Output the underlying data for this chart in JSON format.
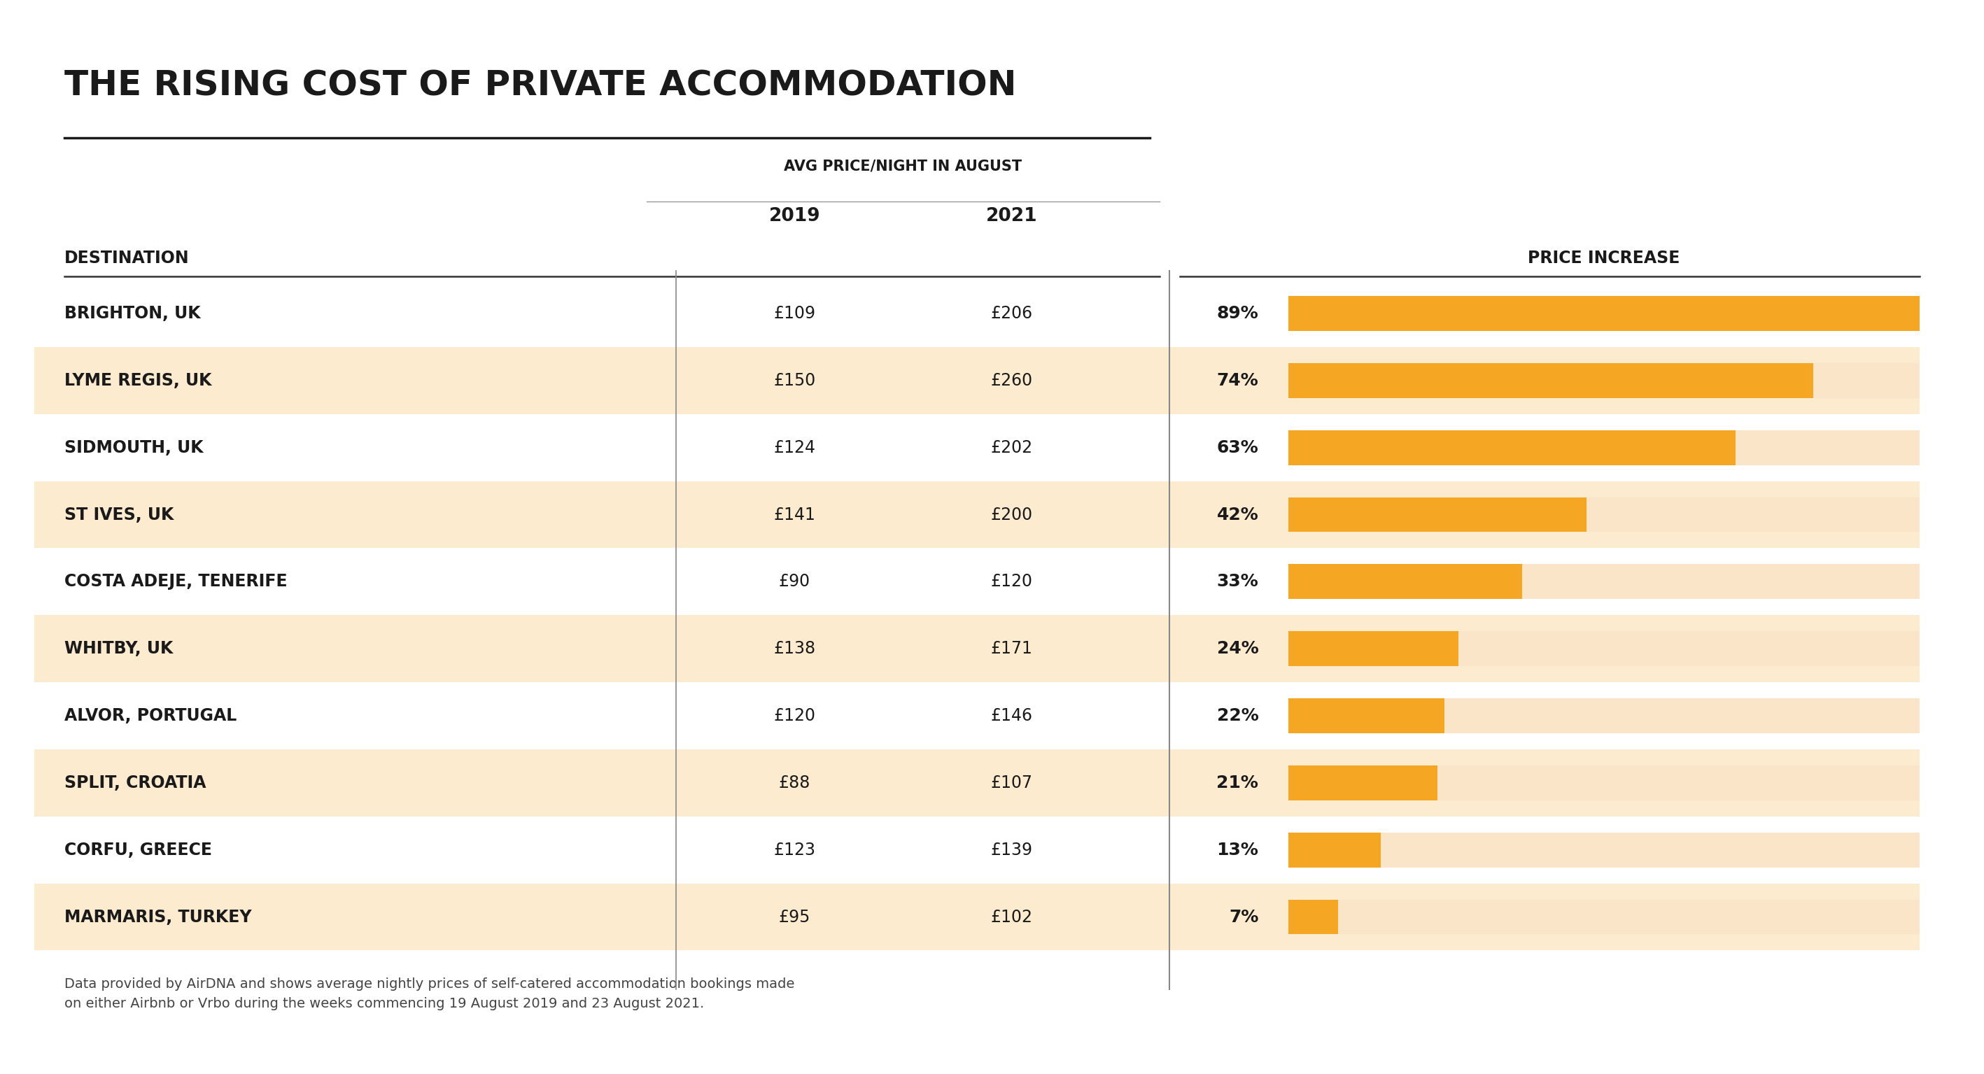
{
  "title": "THE RISING COST OF PRIVATE ACCOMMODATION",
  "destinations": [
    "BRIGHTON, UK",
    "LYME REGIS, UK",
    "SIDMOUTH, UK",
    "ST IVES, UK",
    "COSTA ADEJE, TENERIFE",
    "WHITBY, UK",
    "ALVOR, PORTUGAL",
    "SPLIT, CROATIA",
    "CORFU, GREECE",
    "MARMARIS, TURKEY"
  ],
  "prices_2019": [
    "£109",
    "£150",
    "£124",
    "£141",
    "£90",
    "£138",
    "£120",
    "£88",
    "£123",
    "£95"
  ],
  "prices_2021": [
    "£206",
    "£260",
    "£202",
    "£200",
    "£120",
    "£171",
    "£146",
    "£107",
    "£139",
    "£102"
  ],
  "increases": [
    89,
    74,
    63,
    42,
    33,
    24,
    22,
    21,
    13,
    7
  ],
  "increase_labels": [
    "89%",
    "74%",
    "63%",
    "42%",
    "33%",
    "24%",
    "22%",
    "21%",
    "13%",
    "7%"
  ],
  "highlighted_rows": [
    1,
    3,
    5,
    7,
    9
  ],
  "bg_color": "#FFFFFF",
  "highlight_color": "#FDEBD0",
  "bar_color": "#F5A623",
  "bar_bg_color": "#FAE5C8",
  "text_color": "#1A1A1A",
  "title_color": "#1A1A1A",
  "footer_text": "Data provided by AirDNA and shows average nightly prices of self-catered accommodation bookings made\non either Airbnb or Vrbo during the weeks commencing 19 August 2019 and 23 August 2021.",
  "col_header_avg": "AVG PRICE/NIGHT IN AUGUST",
  "col_header_2019": "2019",
  "col_header_2021": "2021",
  "col_header_dest": "DESTINATION",
  "col_header_increase": "PRICE INCREASE",
  "max_bar_value": 89
}
